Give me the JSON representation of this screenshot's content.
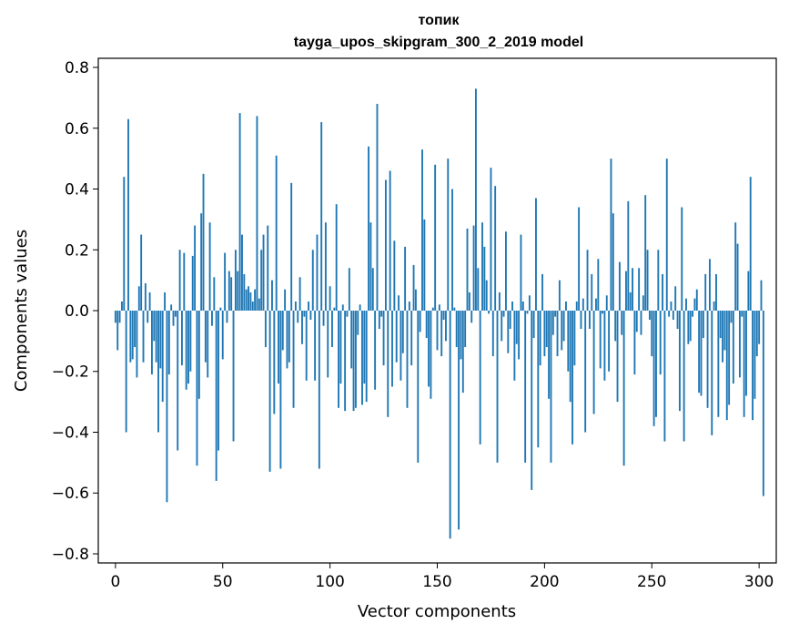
{
  "chart_data": {
    "type": "bar",
    "title": "топик",
    "subtitle": "tayga_upos_skipgram_300_2_2019 model",
    "xlabel": "Vector components",
    "ylabel": "Components values",
    "xlim": [
      -8,
      308
    ],
    "ylim": [
      -0.83,
      0.83
    ],
    "xticks": [
      0,
      50,
      100,
      150,
      200,
      250,
      300
    ],
    "xtick_labels": [
      "0",
      "50",
      "100",
      "150",
      "200",
      "250",
      "300"
    ],
    "yticks": [
      -0.8,
      -0.6,
      -0.4,
      -0.2,
      0.0,
      0.2,
      0.4,
      0.6,
      0.8
    ],
    "ytick_labels": [
      "−0.8",
      "−0.6",
      "−0.4",
      "−0.2",
      "0.0",
      "0.2",
      "0.4",
      "0.6",
      "0.8"
    ],
    "grid": false,
    "legend": "none",
    "bar_color": "#1f77b4",
    "series": [
      {
        "values": [
          -0.04,
          -0.13,
          -0.04,
          0.03,
          0.44,
          -0.4,
          0.63,
          -0.17,
          -0.16,
          -0.12,
          -0.22,
          0.08,
          0.25,
          -0.17,
          0.09,
          -0.04,
          0.06,
          -0.21,
          -0.1,
          -0.17,
          -0.4,
          -0.19,
          -0.3,
          0.06,
          -0.63,
          -0.21,
          0.02,
          -0.05,
          -0.02,
          -0.46,
          0.2,
          -0.18,
          0.19,
          -0.26,
          -0.24,
          -0.2,
          0.18,
          0.28,
          -0.51,
          -0.29,
          0.32,
          0.45,
          -0.17,
          -0.22,
          0.29,
          -0.05,
          0.11,
          -0.56,
          -0.46,
          0.01,
          -0.16,
          0.19,
          -0.04,
          0.13,
          0.11,
          -0.43,
          0.2,
          0.13,
          0.65,
          0.25,
          0.12,
          0.07,
          0.08,
          0.06,
          0.03,
          0.07,
          0.64,
          0.04,
          0.2,
          0.25,
          -0.12,
          0.28,
          -0.53,
          0.1,
          -0.34,
          0.51,
          -0.24,
          -0.52,
          -0.13,
          0.07,
          -0.19,
          -0.17,
          0.42,
          -0.32,
          0.03,
          -0.04,
          0.11,
          -0.11,
          -0.02,
          -0.23,
          0.03,
          -0.03,
          0.2,
          -0.23,
          0.25,
          -0.52,
          0.62,
          -0.05,
          0.29,
          -0.22,
          0.08,
          -0.12,
          0.01,
          0.35,
          -0.32,
          -0.24,
          0.02,
          -0.33,
          -0.02,
          0.14,
          -0.19,
          -0.33,
          -0.32,
          -0.08,
          0.02,
          -0.31,
          -0.24,
          -0.3,
          0.54,
          0.29,
          0.14,
          -0.26,
          0.68,
          -0.06,
          -0.02,
          -0.18,
          0.43,
          -0.35,
          0.46,
          -0.25,
          0.23,
          -0.17,
          0.05,
          -0.23,
          -0.14,
          0.21,
          -0.32,
          0.03,
          -0.18,
          0.15,
          0.07,
          -0.5,
          -0.07,
          0.53,
          0.3,
          -0.09,
          -0.25,
          -0.29,
          0.01,
          0.48,
          -0.13,
          0.02,
          -0.15,
          -0.03,
          -0.1,
          0.5,
          -0.75,
          0.4,
          0.01,
          -0.12,
          -0.72,
          -0.16,
          -0.27,
          -0.12,
          0.27,
          0.06,
          -0.04,
          0.28,
          0.73,
          0.14,
          -0.44,
          0.29,
          0.21,
          0.1,
          -0.01,
          0.47,
          -0.15,
          0.41,
          -0.5,
          0.06,
          -0.1,
          -0.02,
          0.26,
          -0.14,
          -0.06,
          0.03,
          -0.23,
          -0.11,
          -0.16,
          0.25,
          0.03,
          -0.5,
          -0.01,
          0.05,
          -0.59,
          -0.09,
          0.37,
          -0.45,
          -0.18,
          0.12,
          -0.15,
          -0.12,
          -0.29,
          -0.5,
          -0.08,
          -0.02,
          -0.15,
          0.1,
          -0.13,
          -0.1,
          0.03,
          -0.2,
          -0.3,
          -0.44,
          -0.18,
          0.03,
          0.34,
          -0.06,
          0.04,
          -0.4,
          0.2,
          -0.06,
          0.12,
          -0.34,
          0.04,
          0.17,
          -0.19,
          -0.01,
          -0.23,
          0.05,
          -0.2,
          0.5,
          0.32,
          -0.1,
          -0.3,
          0.16,
          -0.08,
          -0.51,
          0.13,
          0.36,
          0.06,
          0.14,
          -0.21,
          -0.07,
          0.14,
          -0.08,
          0.05,
          0.38,
          0.2,
          -0.03,
          -0.15,
          -0.38,
          -0.35,
          0.2,
          -0.21,
          0.12,
          -0.43,
          0.5,
          -0.02,
          0.03,
          -0.03,
          0.08,
          -0.06,
          -0.33,
          0.34,
          -0.43,
          0.04,
          -0.11,
          -0.1,
          -0.02,
          0.04,
          0.07,
          -0.27,
          -0.28,
          -0.09,
          0.12,
          -0.32,
          0.17,
          -0.41,
          0.03,
          0.12,
          -0.35,
          -0.09,
          -0.17,
          -0.13,
          -0.36,
          -0.31,
          -0.04,
          -0.24,
          0.29,
          0.22,
          -0.22,
          -0.02,
          -0.35,
          -0.28,
          0.13,
          0.44,
          -0.36,
          -0.29,
          -0.15,
          -0.11,
          0.1,
          -0.61
        ]
      }
    ]
  }
}
